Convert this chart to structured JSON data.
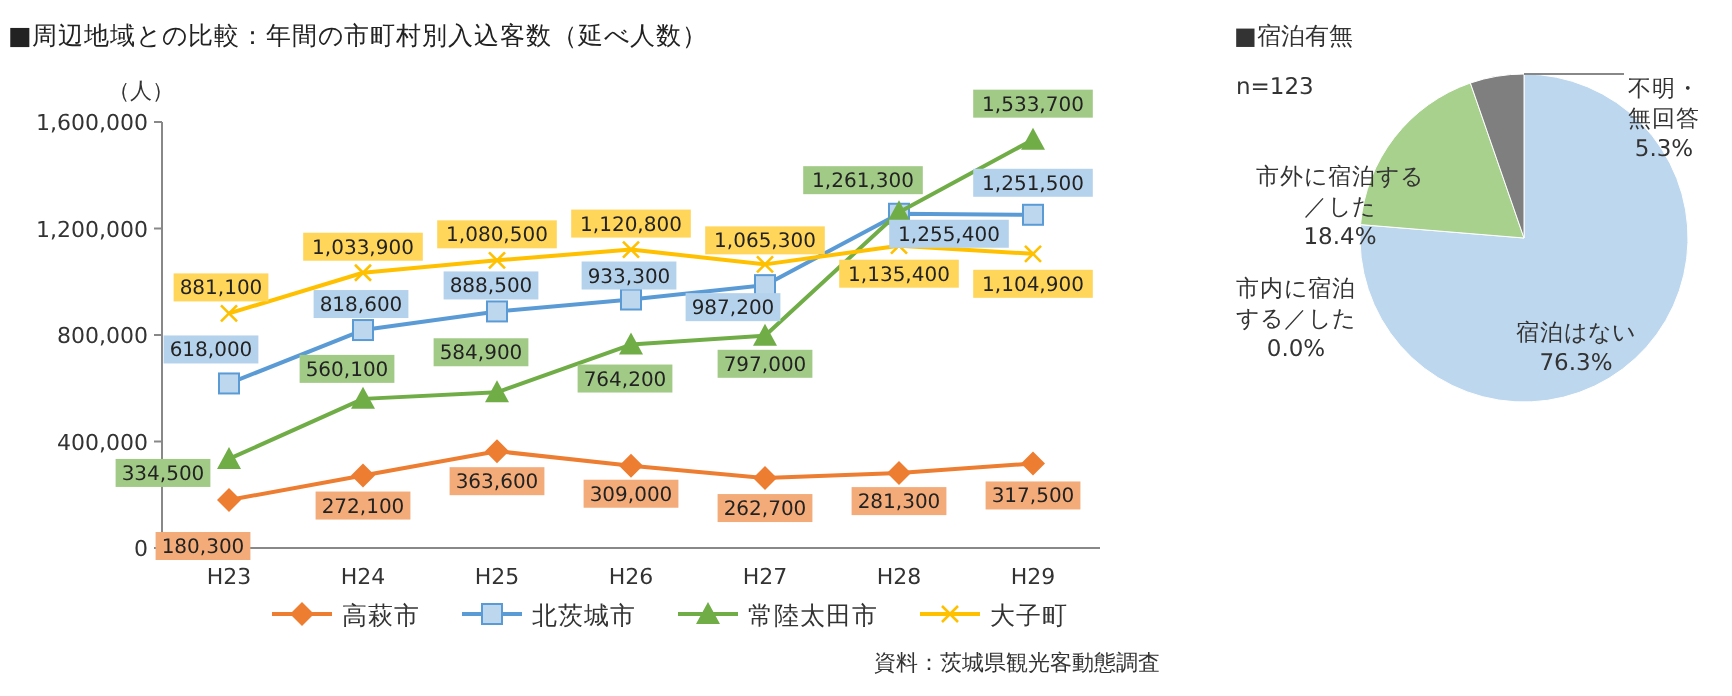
{
  "chart_data": [
    {
      "type": "line",
      "title": "■周辺地域との比較：年間の市町村別入込客数（延べ人数）",
      "ylabel": "（人）",
      "categories": [
        "H23",
        "H24",
        "H25",
        "H26",
        "H27",
        "H28",
        "H29"
      ],
      "ylim": [
        0,
        1600000
      ],
      "yticks": [
        {
          "value": 0,
          "label": "0"
        },
        {
          "value": 400000,
          "label": "400,000"
        },
        {
          "value": 800000,
          "label": "800,000"
        },
        {
          "value": 1200000,
          "label": "1,200,000"
        },
        {
          "value": 1600000,
          "label": "1,600,000"
        }
      ],
      "grid": false,
      "legend": "bottom",
      "annotations": [
        "資料：茨城県観光客動態調査"
      ],
      "series": [
        {
          "name": "高萩市",
          "color": "#ed7d31",
          "marker": "diamond",
          "values": [
            180300,
            272100,
            363600,
            309000,
            262700,
            281300,
            317500
          ],
          "value_labels": [
            "180,300",
            "272,100",
            "363,600",
            "309,000",
            "262,700",
            "281,300",
            "317,500"
          ]
        },
        {
          "name": "北茨城市",
          "color": "#5b9bd5",
          "marker": "square",
          "values": [
            618000,
            818600,
            888500,
            933300,
            987200,
            1255400,
            1251500
          ],
          "value_labels": [
            "618,000",
            "818,600",
            "888,500",
            "933,300",
            "987,200",
            "1,255,400",
            "1,251,500"
          ]
        },
        {
          "name": "常陸太田市",
          "color": "#70ad47",
          "marker": "triangle",
          "values": [
            334500,
            560100,
            584900,
            764200,
            797000,
            1261300,
            1533700
          ],
          "value_labels": [
            "334,500",
            "560,100",
            "584,900",
            "764,200",
            "797,000",
            "1,261,300",
            "1,533,700"
          ]
        },
        {
          "name": "大子町",
          "color": "#ffc000",
          "marker": "cross",
          "values": [
            881100,
            1033900,
            1080500,
            1120800,
            1065300,
            1135400,
            1104900
          ],
          "value_labels": [
            "881,100",
            "1,033,900",
            "1,080,500",
            "1,120,800",
            "1,065,300",
            "1,135,400",
            "1,104,900"
          ]
        }
      ]
    },
    {
      "type": "pie",
      "title": "■宿泊有無",
      "annotations": [
        "n=123"
      ],
      "categories": [
        "宿泊はない",
        "市内に宿泊する／した",
        "市外に宿泊する／した",
        "不明・無回答"
      ],
      "values": [
        76.3,
        0.0,
        18.4,
        5.3
      ],
      "colors": [
        "#bdd7ee",
        "#ffffff",
        "#a9d18e",
        "#7f7f7f"
      ],
      "value_labels": [
        "76.3%",
        "0.0%",
        "18.4%",
        "5.3%"
      ]
    }
  ]
}
